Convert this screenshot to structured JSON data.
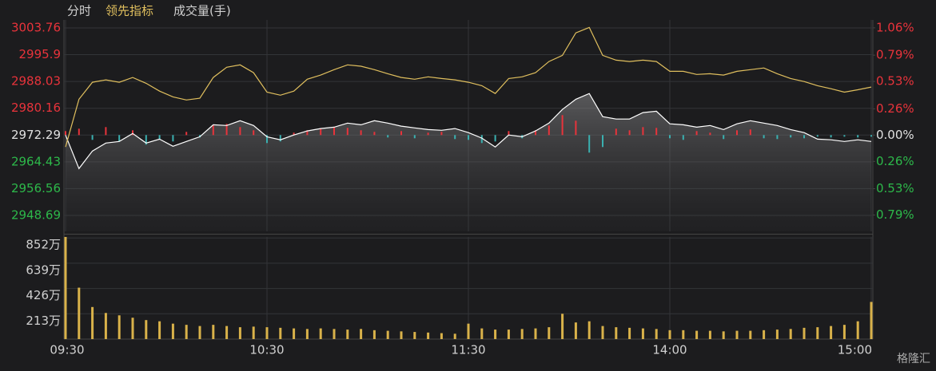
{
  "chart_data": [
    {
      "type": "line",
      "xlim": [
        0,
        240
      ],
      "xticks": [
        {
          "value": 0,
          "label": "09:30"
        },
        {
          "value": 60,
          "label": "10:30"
        },
        {
          "value": 120,
          "label": "11:30"
        },
        {
          "value": 180,
          "label": "14:00"
        },
        {
          "value": 240,
          "label": "15:00"
        }
      ],
      "x": [
        0,
        4,
        8,
        12,
        16,
        20,
        24,
        28,
        32,
        36,
        40,
        44,
        48,
        52,
        56,
        60,
        64,
        68,
        72,
        76,
        80,
        84,
        88,
        92,
        96,
        100,
        104,
        108,
        112,
        116,
        120,
        124,
        128,
        132,
        136,
        140,
        144,
        148,
        152,
        156,
        160,
        164,
        168,
        172,
        176,
        180,
        184,
        188,
        192,
        196,
        200,
        204,
        208,
        212,
        216,
        220,
        224,
        228,
        232,
        236,
        240
      ],
      "ylim": [
        2944.0,
        3006.1
      ],
      "yticks": [
        3003.76,
        2995.9,
        2988.03,
        2980.16,
        2972.29,
        2964.43,
        2956.56,
        2948.69
      ],
      "y2lim": [
        -0.952,
        1.138
      ],
      "y2ticks": [
        {
          "value": 1.06,
          "label": "1.06%"
        },
        {
          "value": 0.79,
          "label": "0.79%"
        },
        {
          "value": 0.53,
          "label": "0.53%"
        },
        {
          "value": 0.26,
          "label": "0.26%"
        },
        {
          "value": 0,
          "label": "0.00%"
        },
        {
          "value": -0.26,
          "label": "0.26%"
        },
        {
          "value": -0.53,
          "label": "0.53%"
        },
        {
          "value": -0.79,
          "label": "0.79%"
        }
      ],
      "grid": true,
      "up_color": "#e8333b",
      "down_color": "#2db84a",
      "flat_color": "#e0e0e0",
      "series": [
        {
          "name": "分时",
          "color": "#ffffff",
          "area": true,
          "values": [
            2972.29,
            2962.45,
            2967.6,
            2969.95,
            2970.4,
            2972.76,
            2969.95,
            2971.1,
            2969.0,
            2970.4,
            2971.8,
            2975.3,
            2975.1,
            2976.5,
            2975.1,
            2971.8,
            2970.9,
            2972.3,
            2973.5,
            2974.2,
            2974.6,
            2975.8,
            2975.3,
            2976.5,
            2975.8,
            2974.9,
            2974.4,
            2973.9,
            2973.7,
            2974.2,
            2973.0,
            2971.4,
            2968.8,
            2972.3,
            2971.8,
            2973.5,
            2975.8,
            2979.8,
            2982.8,
            2984.5,
            2977.7,
            2977.0,
            2977.0,
            2978.9,
            2979.3,
            2975.6,
            2975.3,
            2974.6,
            2975.1,
            2973.9,
            2975.6,
            2976.5,
            2975.8,
            2975.1,
            2973.9,
            2973.0,
            2971.1,
            2970.9,
            2970.4,
            2970.9,
            2970.4
          ]
        },
        {
          "name": "领先指标",
          "color": "#e0bf5e",
          "area": false,
          "values": [
            2968.8,
            2982.8,
            2987.8,
            2988.5,
            2987.8,
            2989.2,
            2987.5,
            2985.2,
            2983.5,
            2982.6,
            2983.1,
            2989.2,
            2992.2,
            2992.9,
            2990.6,
            2984.9,
            2984.0,
            2985.2,
            2988.7,
            2989.9,
            2991.5,
            2992.9,
            2992.5,
            2991.5,
            2990.3,
            2989.2,
            2988.7,
            2989.4,
            2988.9,
            2988.5,
            2987.8,
            2986.8,
            2984.5,
            2988.9,
            2989.4,
            2990.6,
            2993.9,
            2995.7,
            3002.3,
            3003.9,
            2995.7,
            2994.3,
            2993.9,
            2994.3,
            2993.9,
            2991.0,
            2991.0,
            2990.1,
            2990.3,
            2989.9,
            2991.0,
            2991.5,
            2992.0,
            2990.3,
            2988.9,
            2988.0,
            2986.8,
            2985.9,
            2984.9,
            2985.6,
            2986.4
          ]
        }
      ],
      "imbalance": {
        "up_color": "#e8333b",
        "down_color": "#3ab0b0",
        "values": [
          5,
          8,
          -6,
          10,
          -8,
          6,
          -12,
          -5,
          -8,
          4,
          -3,
          12,
          14,
          10,
          6,
          -10,
          -8,
          3,
          6,
          8,
          10,
          9,
          6,
          4,
          -3,
          5,
          -4,
          3,
          4,
          -5,
          -6,
          -10,
          -8,
          5,
          -4,
          6,
          12,
          25,
          18,
          -22,
          -15,
          8,
          6,
          10,
          9,
          -4,
          -6,
          5,
          3,
          -5,
          6,
          7,
          -4,
          -5,
          -3,
          -4,
          -2,
          -3,
          -2,
          -3,
          -2
        ]
      }
    },
    {
      "type": "bar",
      "ylim": [
        0,
        860
      ],
      "yticks": [
        {
          "value": 852,
          "label": "852万"
        },
        {
          "value": 639,
          "label": "639万"
        },
        {
          "value": 426,
          "label": "426万"
        },
        {
          "value": 213,
          "label": "213万"
        }
      ],
      "series": [
        {
          "name": "成交量(手)",
          "color": "#d9b24a",
          "values": [
            860,
            433,
            270,
            220,
            200,
            180,
            160,
            150,
            130,
            120,
            110,
            120,
            110,
            100,
            105,
            100,
            95,
            90,
            85,
            90,
            85,
            80,
            85,
            75,
            70,
            65,
            60,
            55,
            50,
            45,
            130,
            90,
            80,
            80,
            85,
            90,
            100,
            213,
            140,
            150,
            110,
            100,
            95,
            90,
            85,
            75,
            75,
            70,
            70,
            65,
            70,
            70,
            75,
            80,
            85,
            95,
            100,
            110,
            120,
            150,
            313
          ]
        }
      ]
    }
  ],
  "watermark": "格隆汇"
}
